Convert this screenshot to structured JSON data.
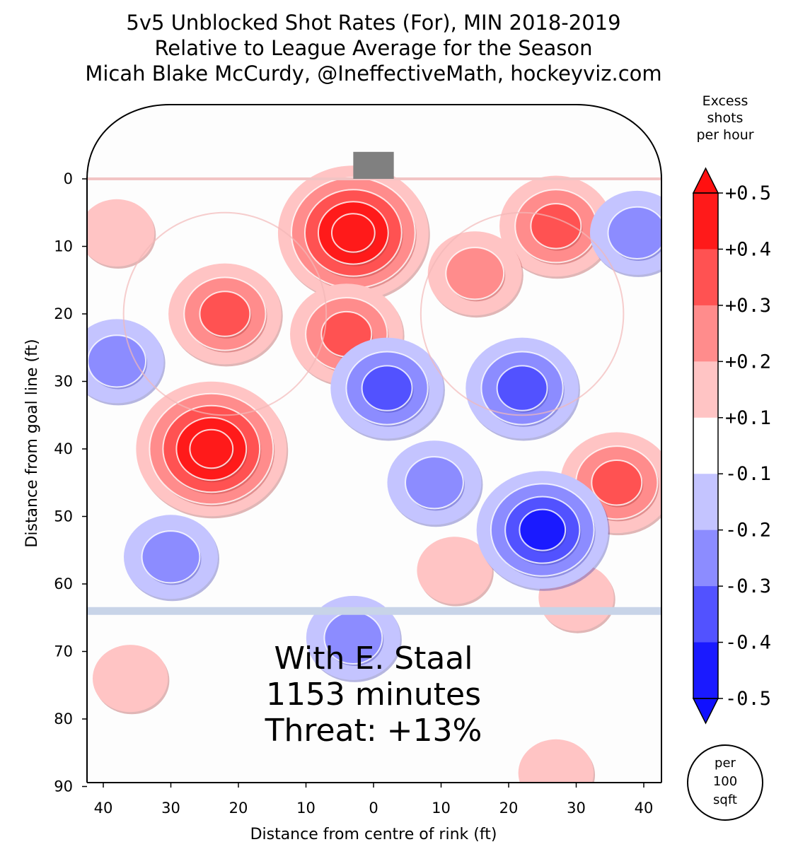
{
  "title_lines": [
    "5v5 Unblocked Shot Rates (For), MIN 2018-2019",
    "Relative to League Average for the Season",
    "Micah Blake McCurdy, @IneffectiveMath, hockeyviz.com"
  ],
  "annotation_lines": [
    "With E. Staal",
    "1153 minutes",
    "Threat: +13%"
  ],
  "colorbar": {
    "title_lines": [
      "Excess",
      "shots",
      "per hour"
    ],
    "ticks": [
      "+0.5",
      "+0.4",
      "+0.3",
      "+0.2",
      "+0.1",
      "-0.1",
      "-0.2",
      "-0.3",
      "-0.4",
      "-0.5"
    ],
    "band_colors": [
      "#ff1a1a",
      "#ff5252",
      "#ff8c8c",
      "#ffc4c4",
      "#ffffff",
      "#c4c4ff",
      "#8c8cff",
      "#5252ff",
      "#1a1aff"
    ],
    "arrow_top_color": "#ff1010",
    "arrow_bottom_color": "#1010ff"
  },
  "unit_badge_lines": [
    "per",
    "100",
    "sqft"
  ],
  "colors": {
    "red_line": "#f2c4c4",
    "blue_line": "#c8d4e8",
    "goal": "#808080"
  },
  "chart_data": {
    "type": "heatmap",
    "title": "5v5 Unblocked Shot Rates (For), MIN 2018-2019",
    "xlabel": "Distance from centre of rink (ft)",
    "ylabel": "Distance from goal line (ft)",
    "xlim": [
      -43,
      43
    ],
    "ylim": [
      90,
      -12
    ],
    "x_ticks": [
      -40,
      -30,
      -20,
      -10,
      0,
      10,
      20,
      30,
      40
    ],
    "x_tick_labels": [
      "40",
      "30",
      "20",
      "10",
      "0",
      "10",
      "20",
      "30",
      "40"
    ],
    "y_ticks": [
      0,
      10,
      20,
      30,
      40,
      50,
      60,
      70,
      80,
      90
    ],
    "y_tick_labels": [
      "0",
      "10",
      "20",
      "30",
      "40",
      "50",
      "60",
      "70",
      "80",
      "90"
    ],
    "levels": [
      -0.5,
      -0.4,
      -0.3,
      -0.2,
      -0.1,
      0.1,
      0.2,
      0.3,
      0.4,
      0.5
    ],
    "hotspots": [
      {
        "x": -3,
        "y": 8,
        "level": 0.5
      },
      {
        "x": -24,
        "y": 40,
        "level": 0.5
      },
      {
        "x": -22,
        "y": 20,
        "level": 0.3
      },
      {
        "x": -4,
        "y": 23,
        "level": 0.3
      },
      {
        "x": 27,
        "y": 7,
        "level": 0.3
      },
      {
        "x": 36,
        "y": 45,
        "level": 0.3
      },
      {
        "x": 15,
        "y": 14,
        "level": 0.2
      },
      {
        "x": -38,
        "y": 8,
        "level": 0.1
      },
      {
        "x": 12,
        "y": 58,
        "level": 0.1
      },
      {
        "x": 27,
        "y": 88,
        "level": 0.1
      },
      {
        "x": -36,
        "y": 74,
        "level": 0.1
      },
      {
        "x": 30,
        "y": 62,
        "level": 0.1
      },
      {
        "x": 25,
        "y": 52,
        "level": -0.4
      },
      {
        "x": 22,
        "y": 31,
        "level": -0.3
      },
      {
        "x": 2,
        "y": 31,
        "level": -0.3
      },
      {
        "x": -30,
        "y": 56,
        "level": -0.2
      },
      {
        "x": -38,
        "y": 27,
        "level": -0.2
      },
      {
        "x": 39,
        "y": 8,
        "level": -0.2
      },
      {
        "x": -3,
        "y": 68,
        "level": -0.2
      },
      {
        "x": 9,
        "y": 45,
        "level": -0.2
      }
    ],
    "rink_lines": {
      "goal_line_y": 0,
      "blue_line_y": 64,
      "centre_line_y": 89,
      "faceoff_circles": [
        {
          "x": -22,
          "y": 20,
          "r": 15
        },
        {
          "x": 22,
          "y": 20,
          "r": 15
        }
      ]
    }
  }
}
